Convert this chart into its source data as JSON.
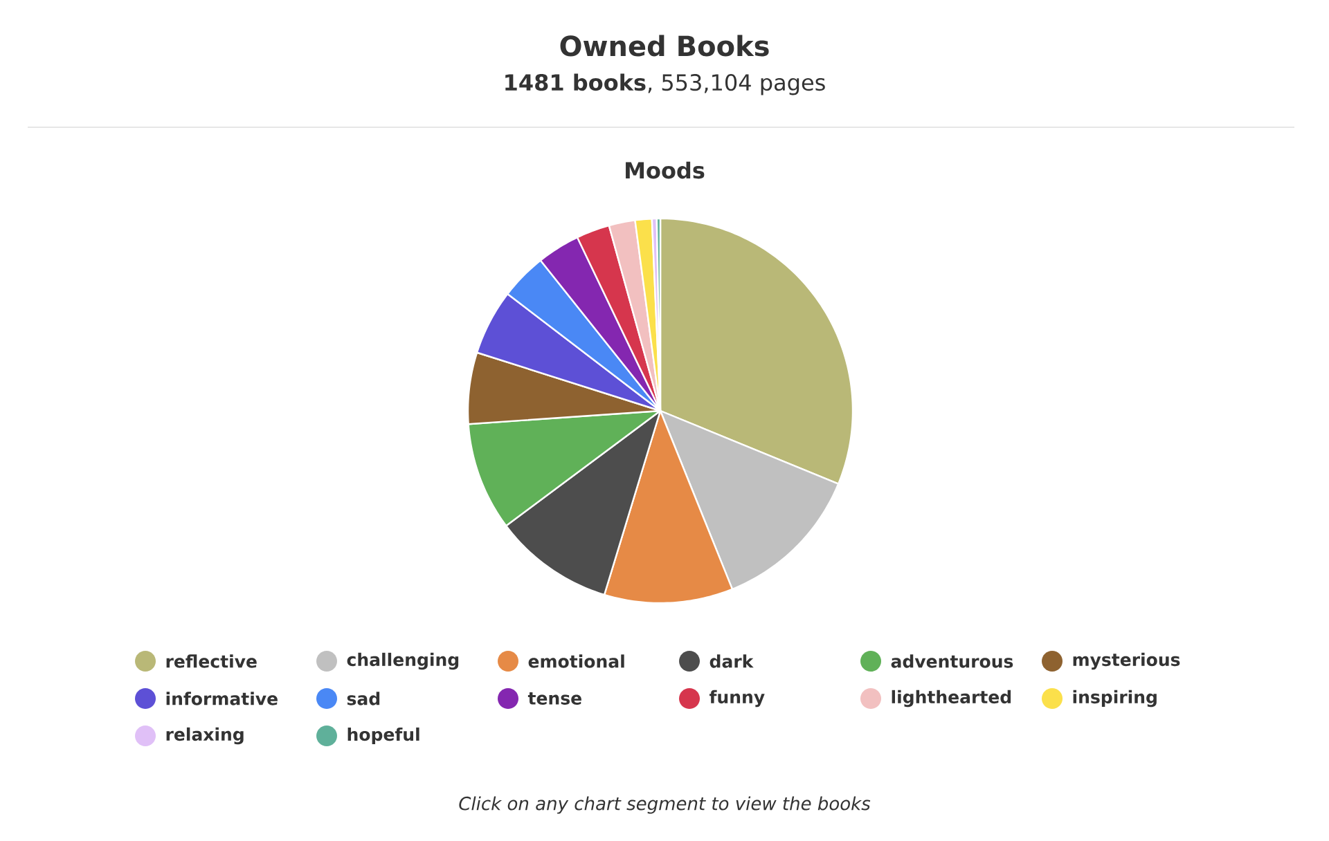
{
  "chart_data": {
    "type": "pie",
    "title": "Owned Books",
    "subtitle": "**1481 books**, 553,104 pages",
    "categories": [
      "reflective",
      "challenging",
      "emotional",
      "dark",
      "adventurous",
      "mysterious",
      "informative",
      "sad",
      "tense",
      "funny",
      "lighthearted",
      "inspiring",
      "relaxing",
      "hopeful"
    ],
    "values": [
      31.2,
      12.7,
      10.8,
      10.1,
      9.1,
      6.0,
      5.5,
      3.9,
      3.6,
      2.8,
      2.2,
      1.4,
      0.4,
      0.3
    ],
    "colors": [
      "#b9b877",
      "#c0c0c0",
      "#e68a46",
      "#4d4d4d",
      "#60b158",
      "#8e6230",
      "#5d50d6",
      "#4a88f5",
      "#8427b0",
      "#d6364d",
      "#f2c0c0",
      "#fbe04b",
      "#e0c0f7",
      "#5fb09a"
    ],
    "legend": "bottom",
    "annotations": [
      "Moods",
      "Click on any chart segment to view the books"
    ]
  }
}
